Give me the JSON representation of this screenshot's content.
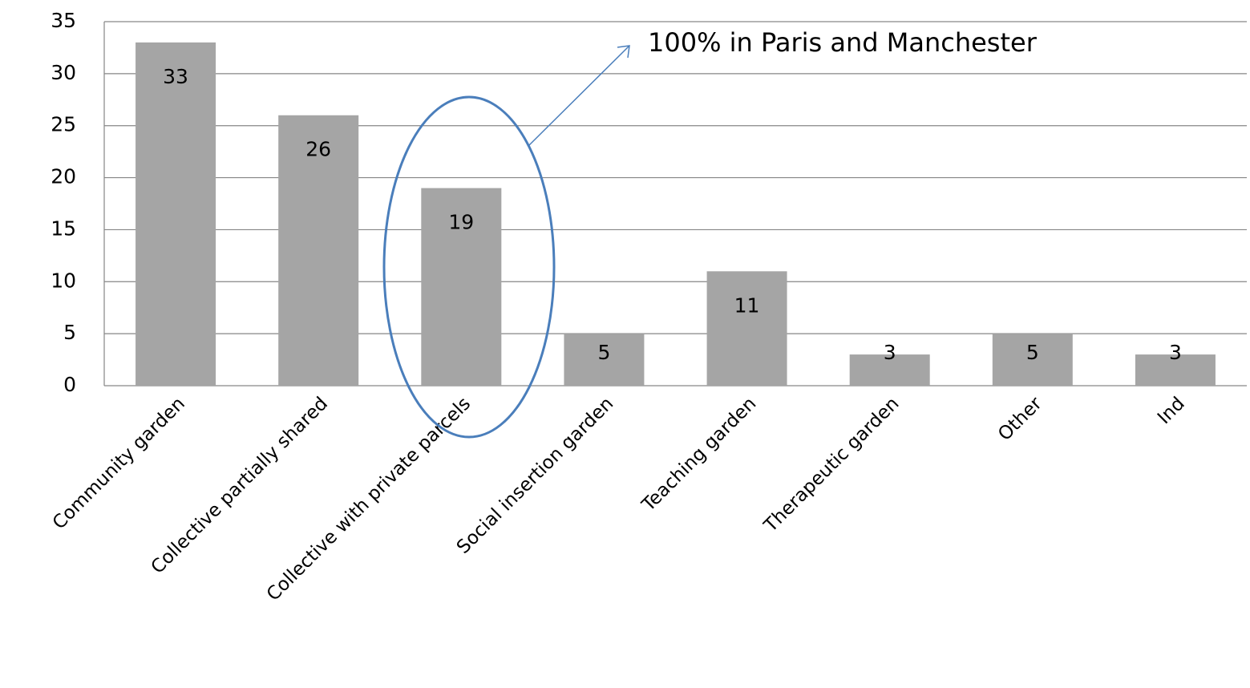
{
  "chart_data": {
    "type": "bar",
    "categories": [
      "Community garden",
      "Collective partially shared",
      "Collective with private parcels",
      "Social insertion garden",
      "Teaching garden",
      "Therapeutic garden",
      "Other",
      "Ind"
    ],
    "values": [
      33,
      26,
      19,
      5,
      11,
      3,
      5,
      3
    ],
    "color": "#a5a5a5",
    "ylim": [
      0,
      35
    ],
    "yticks": [
      0,
      5,
      10,
      15,
      20,
      25,
      30,
      35
    ],
    "grid": true,
    "annotation": "100% in Paris and Manchester"
  }
}
